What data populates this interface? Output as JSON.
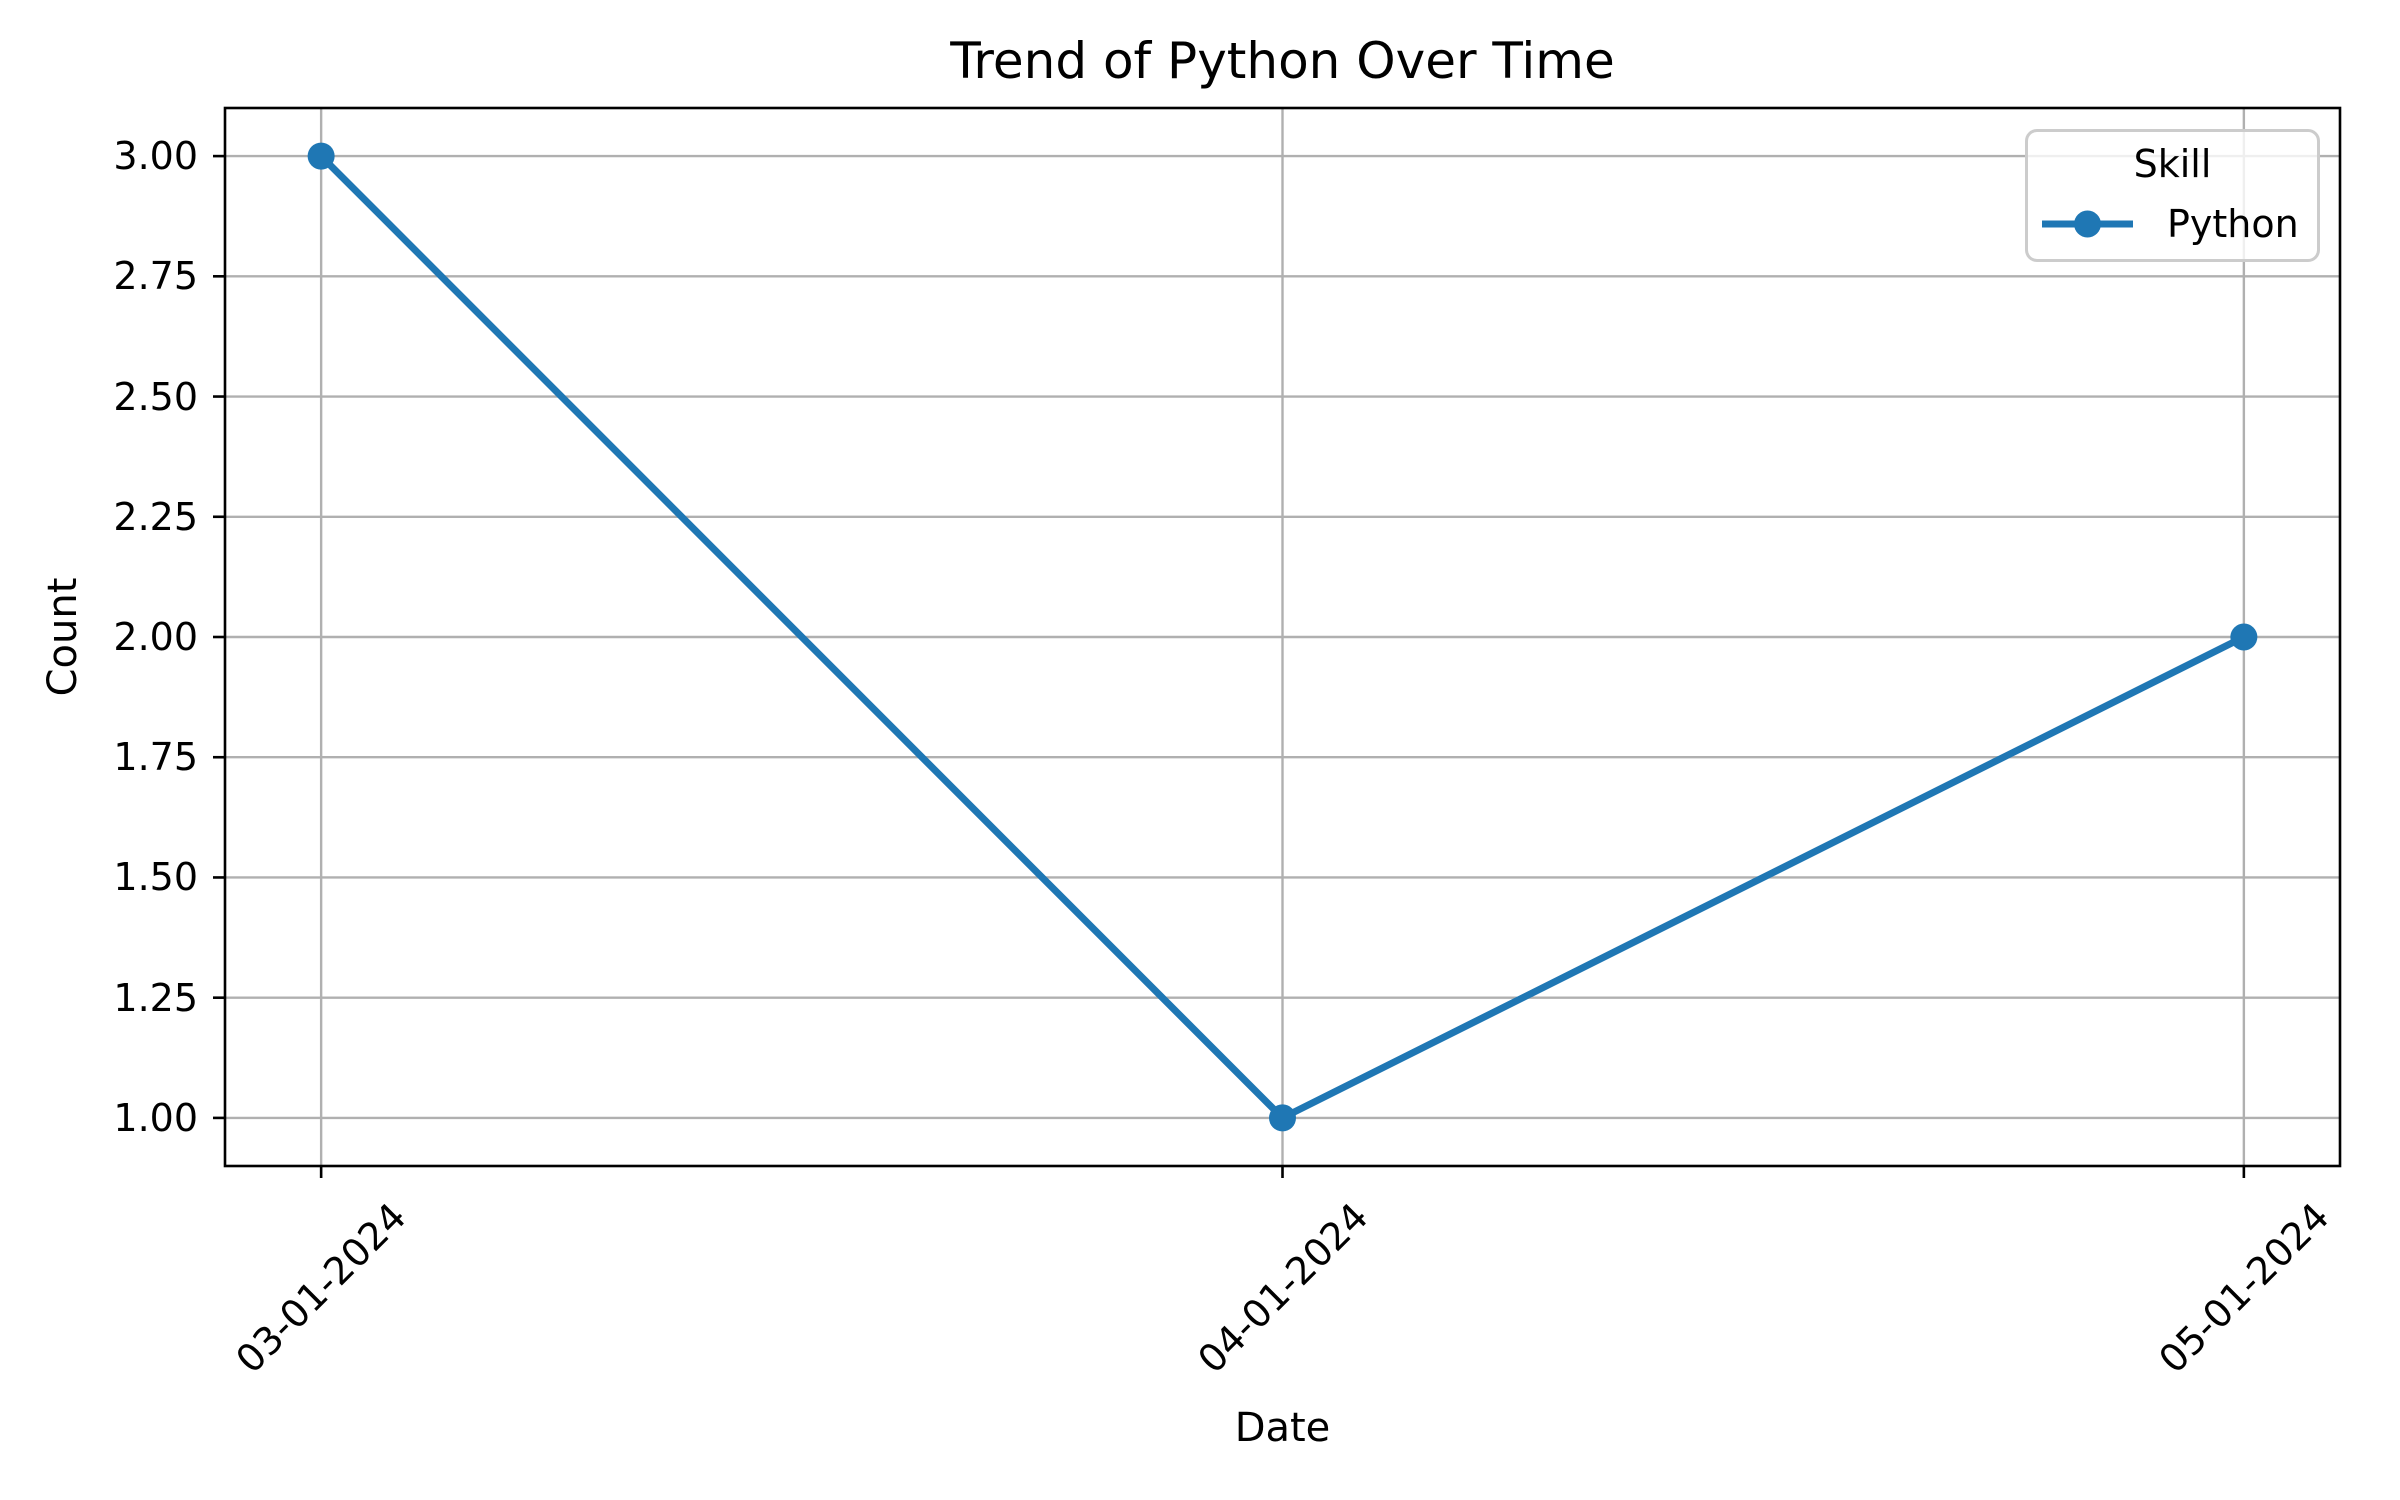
{
  "chart_data": {
    "type": "line",
    "title": "Trend of Python Over Time",
    "xlabel": "Date",
    "ylabel": "Count",
    "categories": [
      "03-01-2024",
      "04-01-2024",
      "05-01-2024"
    ],
    "series": [
      {
        "name": "Python",
        "values": [
          3.0,
          1.0,
          2.0
        ],
        "color": "#1f77b4"
      }
    ],
    "ytick_labels": [
      "1.00",
      "1.25",
      "1.50",
      "1.75",
      "2.00",
      "2.25",
      "2.50",
      "2.75",
      "3.00"
    ],
    "yticks": [
      1.0,
      1.25,
      1.5,
      1.75,
      2.0,
      2.25,
      2.5,
      2.75,
      3.0
    ],
    "ylim": [
      0.9,
      3.1
    ],
    "xlim": [
      -0.1,
      2.1
    ],
    "grid": true,
    "grid_color": "#b0b0b0",
    "spine_color": "#000000",
    "background_color": "#ffffff",
    "legend": {
      "title": "Skill",
      "position": "upper right"
    },
    "marker": "circle"
  }
}
